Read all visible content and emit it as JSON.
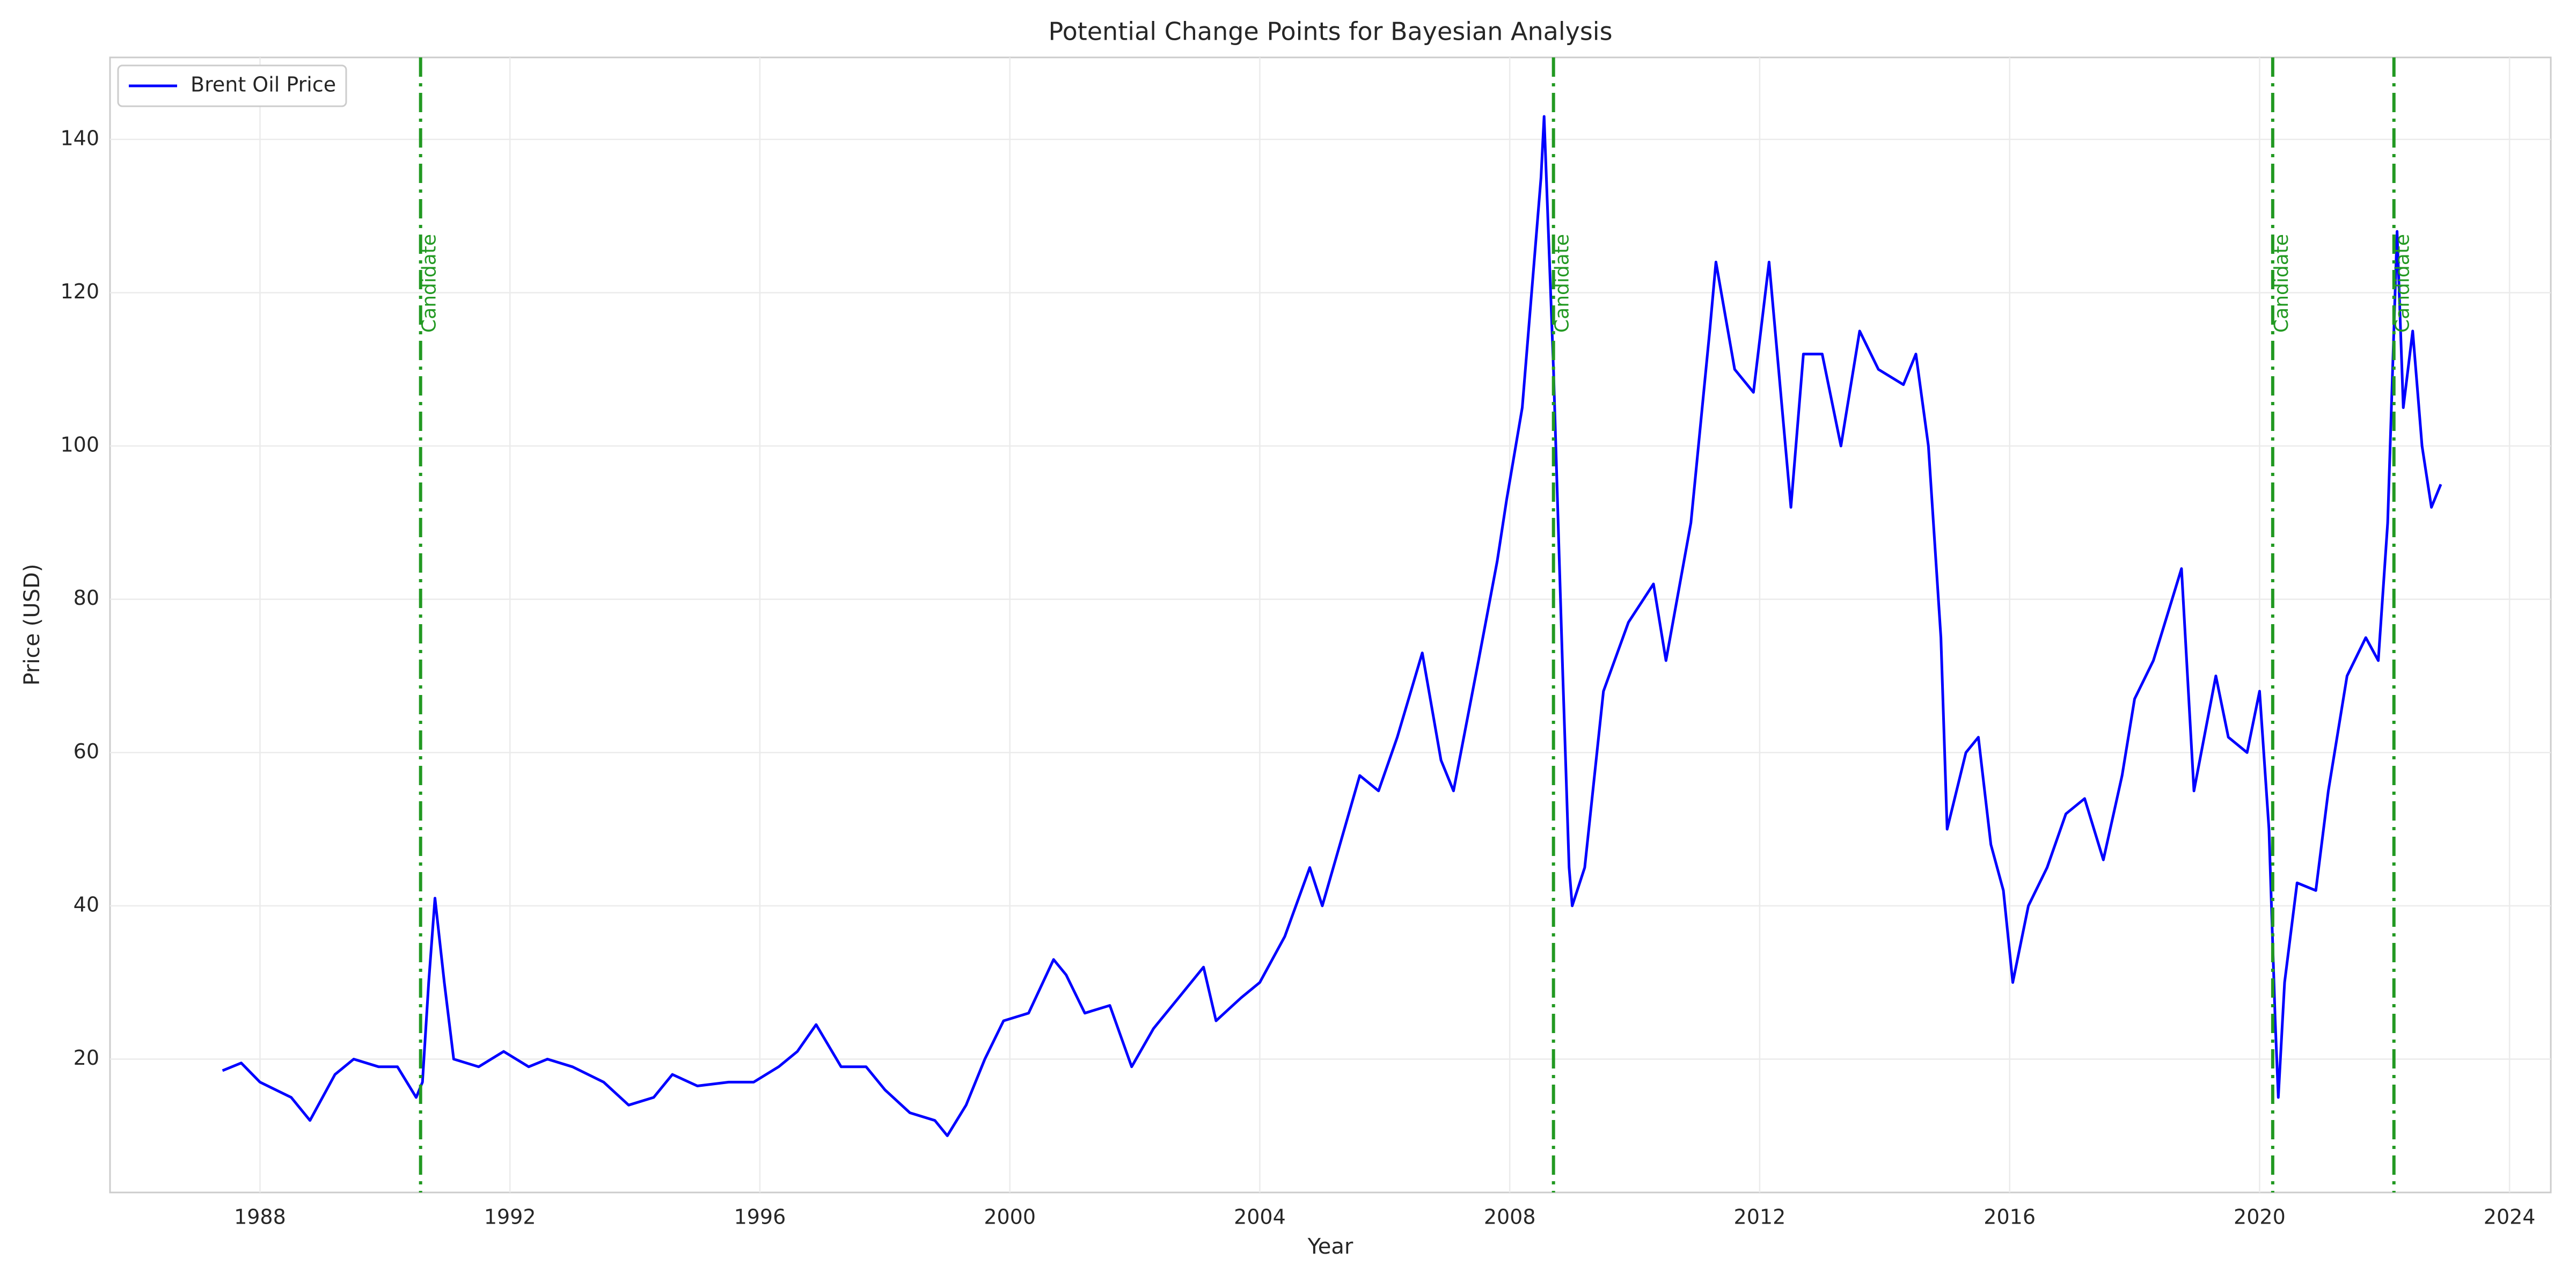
{
  "chart_data": {
    "type": "line",
    "title": "Potential Change Points for Bayesian Analysis",
    "xlabel": "Year",
    "ylabel": "Price (USD)",
    "x": [
      1987.4,
      1987.7,
      1988.0,
      1988.5,
      1988.8,
      1989.2,
      1989.5,
      1989.9,
      1990.2,
      1990.5,
      1990.6,
      1990.7,
      1990.8,
      1990.95,
      1991.1,
      1991.5,
      1991.9,
      1992.3,
      1992.6,
      1993.0,
      1993.5,
      1993.9,
      1994.3,
      1994.6,
      1995.0,
      1995.5,
      1995.9,
      1996.3,
      1996.6,
      1996.9,
      1997.3,
      1997.7,
      1998.0,
      1998.4,
      1998.8,
      1999.0,
      1999.3,
      1999.6,
      1999.9,
      2000.3,
      2000.7,
      2000.9,
      2001.2,
      2001.6,
      2001.95,
      2002.3,
      2002.7,
      2003.1,
      2003.3,
      2003.7,
      2004.0,
      2004.4,
      2004.8,
      2005.0,
      2005.6,
      2005.9,
      2006.2,
      2006.6,
      2006.9,
      2007.1,
      2007.5,
      2007.8,
      2007.95,
      2008.2,
      2008.5,
      2008.55,
      2008.7,
      2008.85,
      2008.95,
      2009.0,
      2009.2,
      2009.5,
      2009.9,
      2010.3,
      2010.5,
      2010.9,
      2011.2,
      2011.3,
      2011.6,
      2011.9,
      2012.15,
      2012.5,
      2012.7,
      2013.0,
      2013.3,
      2013.6,
      2013.9,
      2014.3,
      2014.5,
      2014.7,
      2014.9,
      2015.0,
      2015.3,
      2015.5,
      2015.7,
      2015.9,
      2016.05,
      2016.3,
      2016.6,
      2016.9,
      2017.2,
      2017.5,
      2017.8,
      2018.0,
      2018.3,
      2018.75,
      2018.95,
      2019.3,
      2019.5,
      2019.8,
      2020.0,
      2020.15,
      2020.25,
      2020.3,
      2020.4,
      2020.6,
      2020.9,
      2021.1,
      2021.4,
      2021.7,
      2021.9,
      2022.05,
      2022.2,
      2022.3,
      2022.45,
      2022.6,
      2022.75,
      2022.9
    ],
    "series": [
      {
        "name": "Brent Oil Price",
        "color": "#0000ff",
        "values": [
          18.5,
          19.5,
          17,
          15,
          12,
          18,
          20,
          19,
          19,
          15,
          17,
          30,
          41,
          30,
          20,
          19,
          21,
          19,
          20,
          19,
          17,
          14,
          15,
          18,
          16.5,
          17,
          17,
          19,
          21,
          24.5,
          19,
          19,
          16,
          13,
          12,
          10,
          14,
          20,
          25,
          26,
          33,
          31,
          26,
          27,
          19,
          24,
          28,
          32,
          25,
          28,
          30,
          36,
          45,
          40,
          57,
          55,
          62,
          73,
          59,
          55,
          72,
          85,
          93,
          105,
          135,
          143,
          110,
          70,
          45,
          40,
          45,
          68,
          77,
          82,
          72,
          90,
          115,
          124,
          110,
          107,
          124,
          92,
          112,
          112,
          100,
          115,
          110,
          108,
          112,
          100,
          75,
          50,
          60,
          62,
          48,
          42,
          30,
          40,
          45,
          52,
          54,
          46,
          57,
          67,
          72,
          84,
          55,
          70,
          62,
          60,
          68,
          50,
          25,
          15,
          30,
          43,
          42,
          55,
          70,
          75,
          72,
          90,
          128,
          105,
          115,
          100,
          92,
          95
        ]
      }
    ],
    "markers": [
      {
        "x": 1990.57,
        "label": "Candidate"
      },
      {
        "x": 2008.7,
        "label": "Candidate"
      },
      {
        "x": 2020.21,
        "label": "Candidate"
      },
      {
        "x": 2022.15,
        "label": "Candidate"
      }
    ],
    "marker_color": "#229922",
    "xlim": [
      1985.6,
      2024.66
    ],
    "xticks": [
      1988,
      1992,
      1996,
      2000,
      2004,
      2008,
      2012,
      2016,
      2020,
      2024
    ],
    "ylim": [
      2.6,
      150.7
    ],
    "yticks": [
      20,
      40,
      60,
      80,
      100,
      120,
      140
    ],
    "grid": true,
    "legend": "upper left"
  }
}
